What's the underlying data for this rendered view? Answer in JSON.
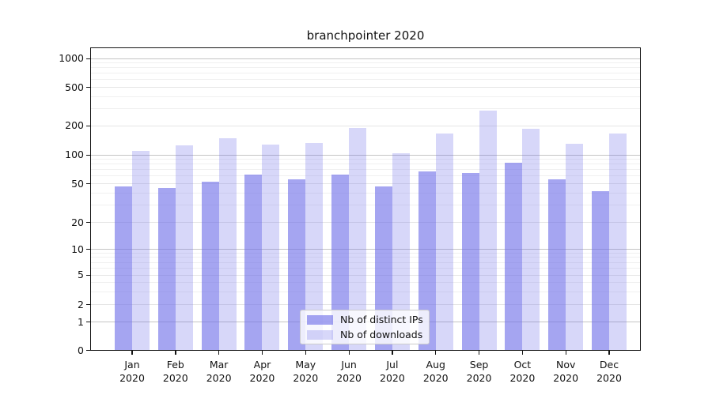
{
  "chart_data": {
    "type": "bar",
    "title": "branchpointer 2020",
    "categories": [
      "Jan",
      "Feb",
      "Mar",
      "Apr",
      "May",
      "Jun",
      "Jul",
      "Aug",
      "Sep",
      "Oct",
      "Nov",
      "Dec"
    ],
    "category_year": "2020",
    "series": [
      {
        "name": "Nb of distinct IPs",
        "color": "rgba(110,110,232,0.62)",
        "values": [
          47,
          45,
          52,
          62,
          56,
          62,
          47,
          67,
          65,
          83,
          56,
          42
        ]
      },
      {
        "name": "Nb of downloads",
        "color": "rgba(110,110,232,0.28)",
        "values": [
          110,
          125,
          148,
          128,
          133,
          189,
          104,
          166,
          285,
          187,
          130,
          165
        ]
      }
    ],
    "yscale": "log-with-zero",
    "yticks": [
      0,
      1,
      2,
      5,
      10,
      20,
      50,
      100,
      200,
      500,
      1000
    ],
    "ylim": [
      0,
      1300
    ],
    "grid": "horizontal",
    "legend_position": "lower center",
    "colors": {
      "major_grid": "#c4c4c4",
      "labeled_grid": "#e5e5e5",
      "minor_grid": "#f0f0f0",
      "spine": "#141414"
    }
  }
}
